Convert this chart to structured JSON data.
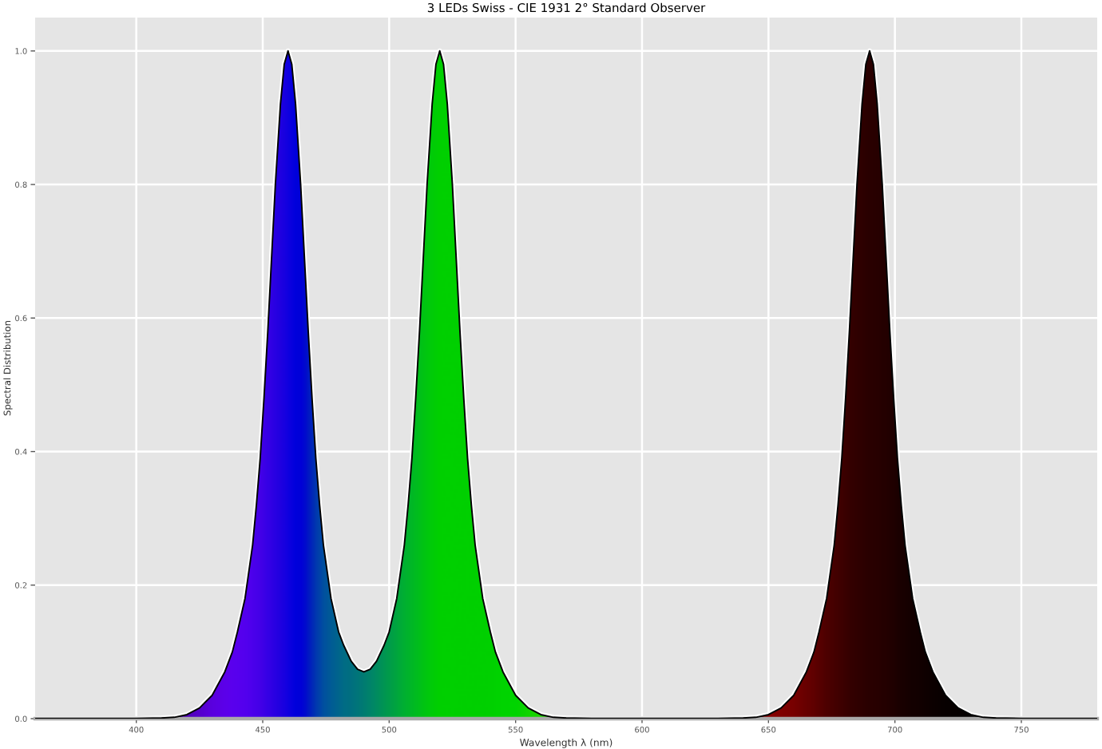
{
  "chart_data": {
    "type": "area",
    "title": "3 LEDs Swiss - CIE 1931 2° Standard Observer",
    "xlabel": "Wavelength λ (nm)",
    "ylabel": "Spectral Distribution",
    "x": [
      360,
      380,
      400,
      410,
      415,
      420,
      425,
      430,
      435,
      438,
      440,
      443,
      446,
      447.5,
      449,
      450.5,
      452,
      453.5,
      455,
      457,
      458.5,
      460,
      461.5,
      463,
      465,
      466.5,
      468,
      469.5,
      471,
      472.5,
      474,
      477,
      480,
      482,
      485,
      487.5,
      490,
      492.5,
      495,
      498,
      500,
      503,
      506,
      507.5,
      509,
      510.5,
      512,
      513.5,
      515,
      517,
      518.5,
      520,
      521.5,
      523,
      525,
      526.5,
      528,
      529.5,
      531,
      532.5,
      534,
      537,
      540,
      542,
      545,
      550,
      555,
      560,
      565,
      570,
      580,
      600,
      620,
      630,
      640,
      645,
      650,
      655,
      660,
      665,
      668,
      670,
      673,
      676,
      677.5,
      679,
      680.5,
      682,
      683.5,
      685,
      687,
      688.5,
      690,
      691.5,
      693,
      695,
      696.5,
      698,
      699.5,
      701,
      702.5,
      704,
      707,
      710,
      712,
      715,
      720,
      725,
      730,
      735,
      740,
      750,
      780
    ],
    "series": [
      {
        "values": [
          0,
          0,
          0,
          0.001,
          0.002,
          0.006,
          0.016,
          0.035,
          0.07,
          0.1,
          0.13,
          0.18,
          0.26,
          0.32,
          0.39,
          0.48,
          0.58,
          0.69,
          0.8,
          0.92,
          0.98,
          1.0,
          0.98,
          0.92,
          0.8,
          0.69,
          0.58,
          0.48,
          0.39,
          0.32,
          0.26,
          0.18,
          0.13,
          0.11,
          0.086,
          0.074,
          0.07,
          0.074,
          0.086,
          0.11,
          0.13,
          0.18,
          0.26,
          0.32,
          0.39,
          0.48,
          0.58,
          0.69,
          0.8,
          0.92,
          0.98,
          1.0,
          0.98,
          0.92,
          0.8,
          0.69,
          0.58,
          0.48,
          0.39,
          0.32,
          0.26,
          0.18,
          0.13,
          0.1,
          0.07,
          0.035,
          0.016,
          0.006,
          0.002,
          0.001,
          0,
          0,
          0,
          0,
          0.001,
          0.002,
          0.006,
          0.016,
          0.035,
          0.07,
          0.1,
          0.13,
          0.18,
          0.26,
          0.32,
          0.39,
          0.48,
          0.58,
          0.69,
          0.8,
          0.92,
          0.98,
          1.0,
          0.98,
          0.92,
          0.8,
          0.69,
          0.58,
          0.48,
          0.39,
          0.32,
          0.26,
          0.18,
          0.13,
          0.1,
          0.07,
          0.035,
          0.016,
          0.006,
          0.002,
          0.001,
          0,
          0
        ],
        "colors": [
          "#1a0026",
          "#2a0040",
          "#3a0070",
          "#46008a",
          "#4c00a0",
          "#5000b8",
          "#5500cc",
          "#5a00e0",
          "#5c00ea",
          "#5a00ee",
          "#5800ee",
          "#5400ee",
          "#4c00ec",
          "#4800ea",
          "#4400e8",
          "#3c00e6",
          "#3600e6",
          "#3000e4",
          "#2800e2",
          "#2000e0",
          "#1800e0",
          "#1000e0",
          "#0800de",
          "#0000dc",
          "#0000d8",
          "#0008d0",
          "#0018c4",
          "#0028b8",
          "#0038b0",
          "#0044a8",
          "#0050a0",
          "#005c96",
          "#00668c",
          "#006c86",
          "#007080",
          "#00767a",
          "#007c72",
          "#00846a",
          "#008c60",
          "#009652",
          "#009c4a",
          "#00a63e",
          "#00b032",
          "#00b42c",
          "#00b826",
          "#00bc20",
          "#00c01a",
          "#00c414",
          "#00c80e",
          "#00cc08",
          "#00ce04",
          "#00d000",
          "#00d000",
          "#00d000",
          "#00d000",
          "#00d000",
          "#00d000",
          "#00d000",
          "#00d000",
          "#00d000",
          "#00d000",
          "#00d000",
          "#00d000",
          "#00d200",
          "#00d400",
          "#00d400",
          "#10d400",
          "#20d400",
          "#30d200",
          "#40d000",
          "#60c800",
          "#d08000",
          "#d04000",
          "#c02000",
          "#a00000",
          "#900000",
          "#880000",
          "#800000",
          "#780000",
          "#680000",
          "#600000",
          "#580000",
          "#4e0000",
          "#460000",
          "#420000",
          "#3e0000",
          "#3a0000",
          "#360000",
          "#330000",
          "#300000",
          "#2e0000",
          "#2c0000",
          "#2a0000",
          "#290000",
          "#280000",
          "#260000",
          "#240000",
          "#220000",
          "#200000",
          "#1c0000",
          "#1a0000",
          "#180000",
          "#140000",
          "#120000",
          "#100000",
          "#0c0000",
          "#080000",
          "#060000",
          "#040000",
          "#020000",
          "#010000",
          "#000000",
          "#000000"
        ]
      }
    ],
    "xlim": [
      360,
      780
    ],
    "ylim": [
      0,
      1.05
    ],
    "xticks": [
      400,
      450,
      500,
      550,
      600,
      650,
      700,
      750
    ],
    "yticks": [
      {
        "value": 0,
        "label": "0.0"
      },
      0.2,
      0.4,
      0.6,
      0.8,
      {
        "value": 1,
        "label": "1.0"
      }
    ],
    "grid": true
  }
}
